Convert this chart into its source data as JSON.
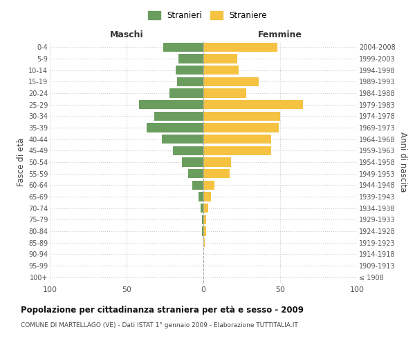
{
  "age_groups": [
    "100+",
    "95-99",
    "90-94",
    "85-89",
    "80-84",
    "75-79",
    "70-74",
    "65-69",
    "60-64",
    "55-59",
    "50-54",
    "45-49",
    "40-44",
    "35-39",
    "30-34",
    "25-29",
    "20-24",
    "15-19",
    "10-14",
    "5-9",
    "0-4"
  ],
  "birth_years": [
    "≤ 1908",
    "1909-1913",
    "1914-1918",
    "1919-1923",
    "1924-1928",
    "1929-1933",
    "1934-1938",
    "1939-1943",
    "1944-1948",
    "1949-1953",
    "1954-1958",
    "1959-1963",
    "1964-1968",
    "1969-1973",
    "1974-1978",
    "1979-1983",
    "1984-1988",
    "1989-1993",
    "1994-1998",
    "1999-2003",
    "2004-2008"
  ],
  "maschi": [
    0,
    0,
    0,
    0,
    1,
    1,
    2,
    3,
    7,
    10,
    14,
    20,
    27,
    37,
    32,
    42,
    22,
    17,
    18,
    16,
    26
  ],
  "femmine": [
    0,
    0,
    0,
    1,
    2,
    2,
    3,
    5,
    7,
    17,
    18,
    44,
    44,
    49,
    50,
    65,
    28,
    36,
    23,
    22,
    48
  ],
  "color_maschi": "#6b9e5e",
  "color_femmine": "#f5c242",
  "background_color": "#ffffff",
  "grid_color": "#cccccc",
  "title": "Popolazione per cittadinanza straniera per età e sesso - 2009",
  "subtitle": "COMUNE DI MARTELLAGO (VE) - Dati ISTAT 1° gennaio 2009 - Elaborazione TUTTITALIA.IT",
  "ylabel_left": "Fasce di età",
  "ylabel_right": "Anni di nascita",
  "xlabel_left": "Maschi",
  "xlabel_right": "Femmine",
  "legend_maschi": "Stranieri",
  "legend_femmine": "Straniere",
  "xlim": 100,
  "bar_height": 0.8
}
